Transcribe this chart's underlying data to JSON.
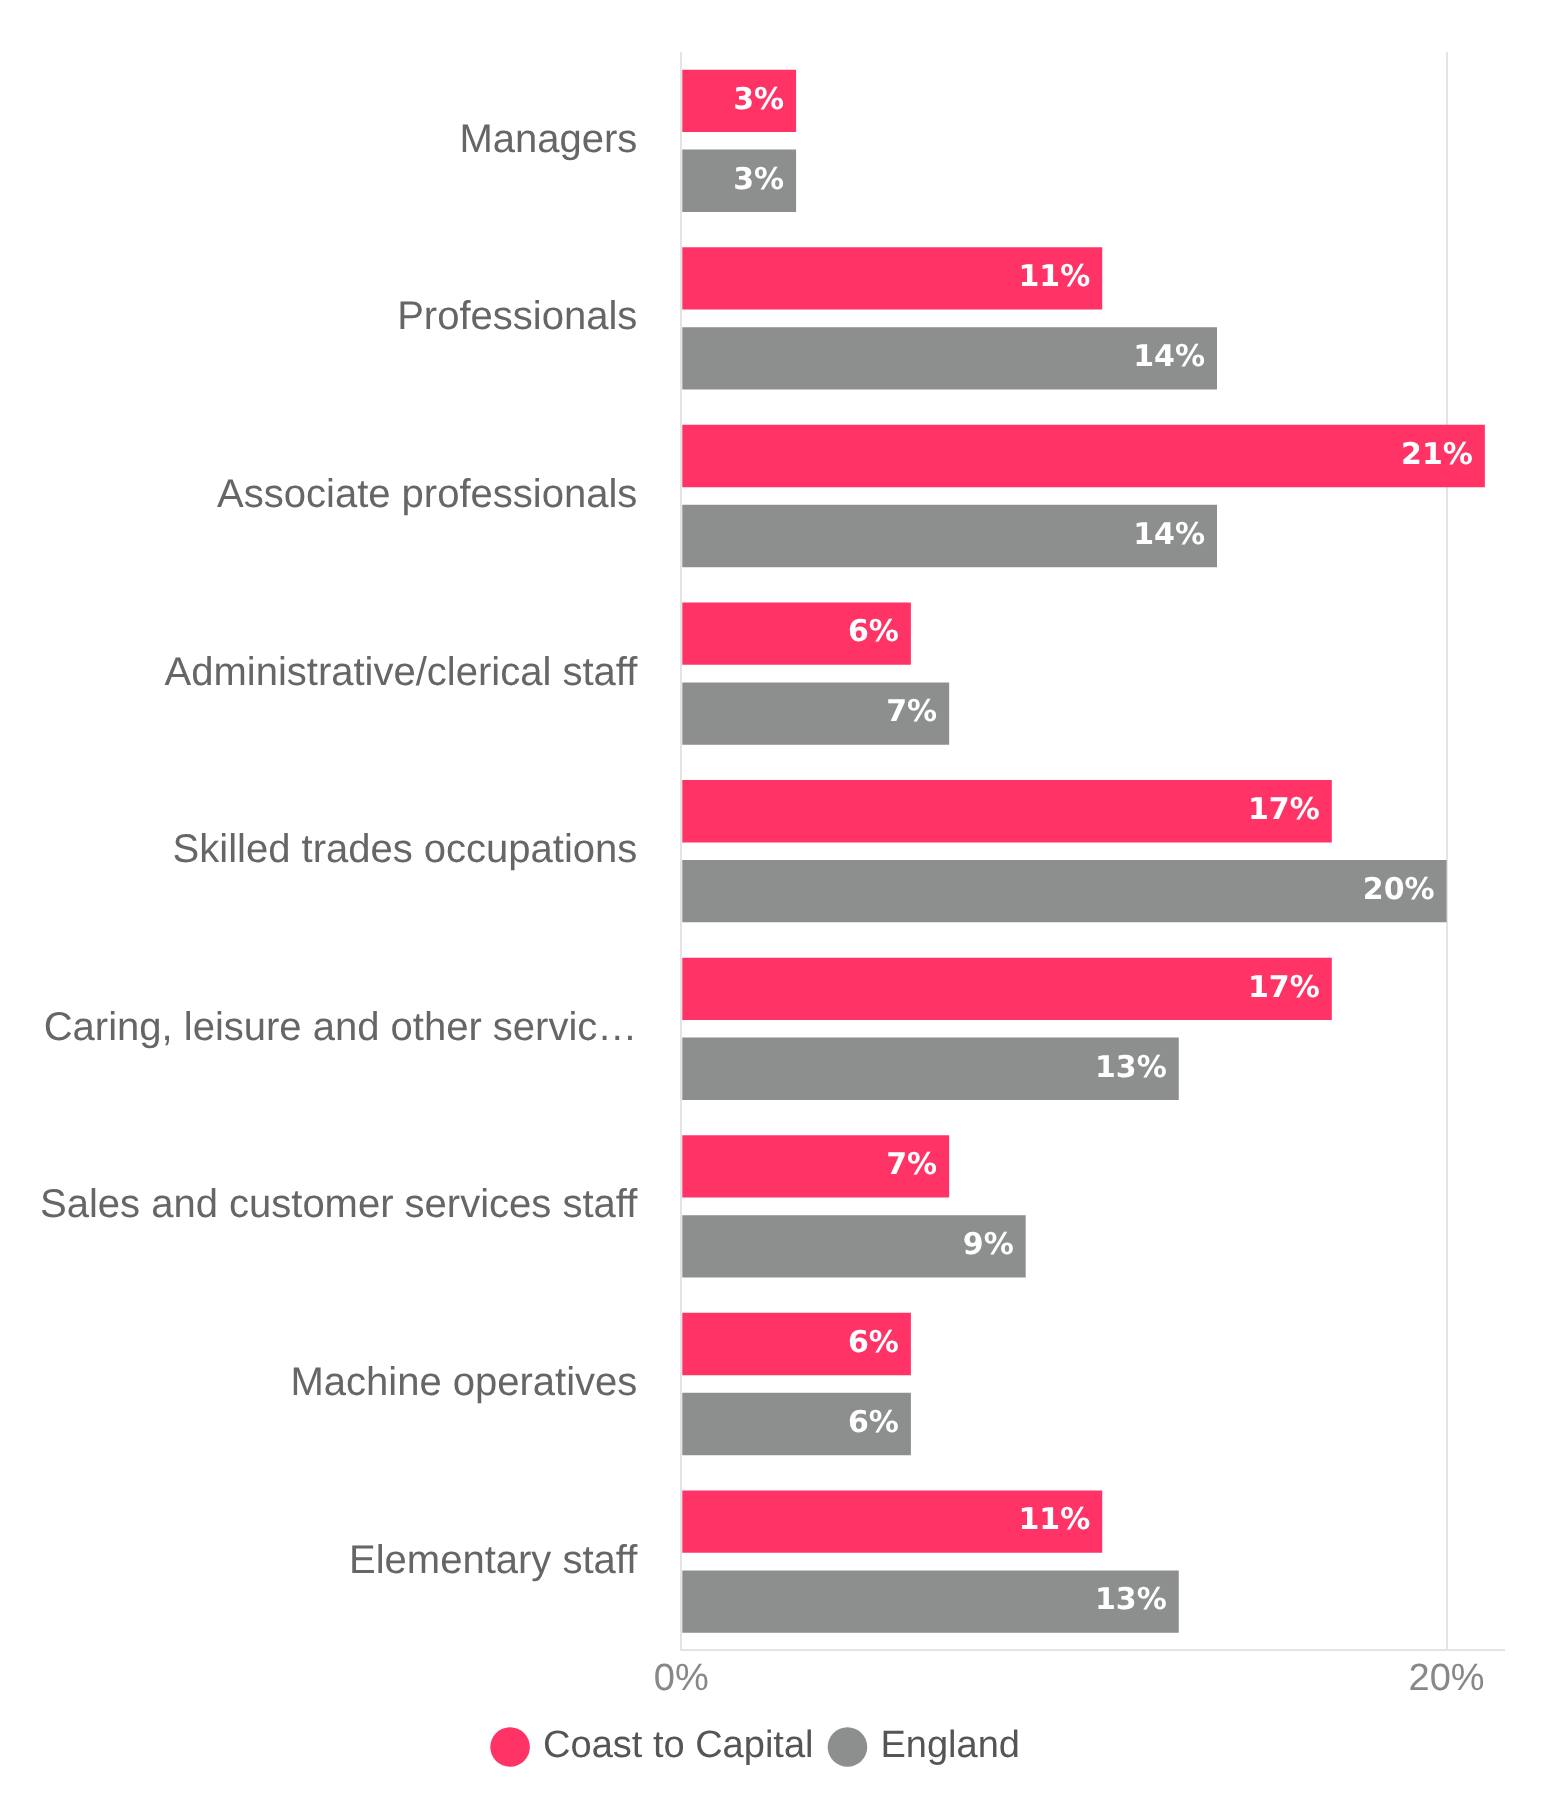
{
  "chart_data": {
    "type": "bar",
    "orientation": "horizontal",
    "categories": [
      "Managers",
      "Professionals",
      "Associate professionals",
      "Administrative/clerical staff",
      "Skilled trades occupations",
      "Caring, leisure and other servic…",
      "Sales and customer services staff",
      "Machine operatives",
      "Elementary staff"
    ],
    "series": [
      {
        "name": "Coast to Capital",
        "color": "#ff3366",
        "values": [
          3,
          11,
          21,
          6,
          17,
          17,
          7,
          6,
          11
        ],
        "value_labels": [
          "3%",
          "11%",
          "21%",
          "6%",
          "17%",
          "17%",
          "7%",
          "6%",
          "11%"
        ]
      },
      {
        "name": "England",
        "color": "#8c8f8e",
        "values": [
          3,
          14,
          14,
          7,
          20,
          13,
          9,
          6,
          13
        ],
        "value_labels": [
          "3%",
          "14%",
          "14%",
          "7%",
          "20%",
          "13%",
          "9%",
          "6%",
          "13%"
        ]
      }
    ],
    "xlim": [
      0,
      21.5
    ],
    "xticks": [
      {
        "value": 0,
        "label": "0%"
      },
      {
        "value": 20,
        "label": "20%"
      }
    ],
    "grid": "x",
    "legend": "bottom",
    "marker": "circle"
  }
}
